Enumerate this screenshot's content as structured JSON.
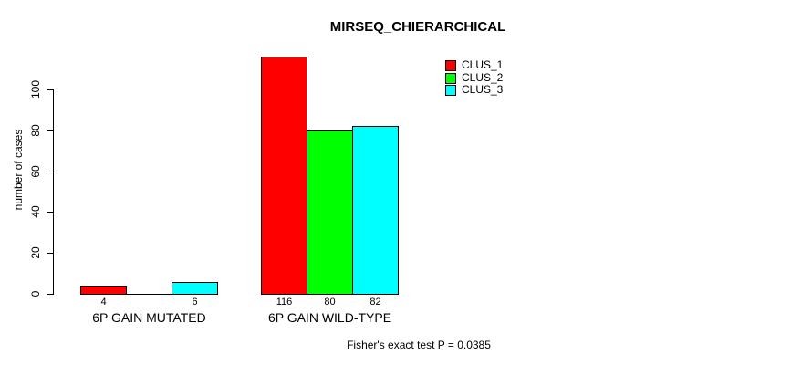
{
  "chart_data": {
    "type": "bar",
    "title": "MIRSEQ_CHIERARCHICAL",
    "ylabel": "number of cases",
    "xlabel": "",
    "categories": [
      "6P GAIN MUTATED",
      "6P GAIN WILD-TYPE"
    ],
    "series": [
      {
        "name": "CLUS_1",
        "color": "#ff0000",
        "values": [
          4,
          116
        ]
      },
      {
        "name": "CLUS_2",
        "color": "#00ff00",
        "values": [
          0,
          80
        ]
      },
      {
        "name": "CLUS_3",
        "color": "#00ffff",
        "values": [
          6,
          82
        ]
      }
    ],
    "yticks": [
      0,
      20,
      40,
      60,
      80,
      100
    ],
    "ylim": [
      0,
      116
    ],
    "bar_value_labels_shown": true,
    "grid": false,
    "legend": {
      "position": "top-right",
      "entries": [
        "CLUS_1",
        "CLUS_2",
        "CLUS_3"
      ]
    },
    "annotation": "Fisher's exact test P = 0.0385"
  }
}
